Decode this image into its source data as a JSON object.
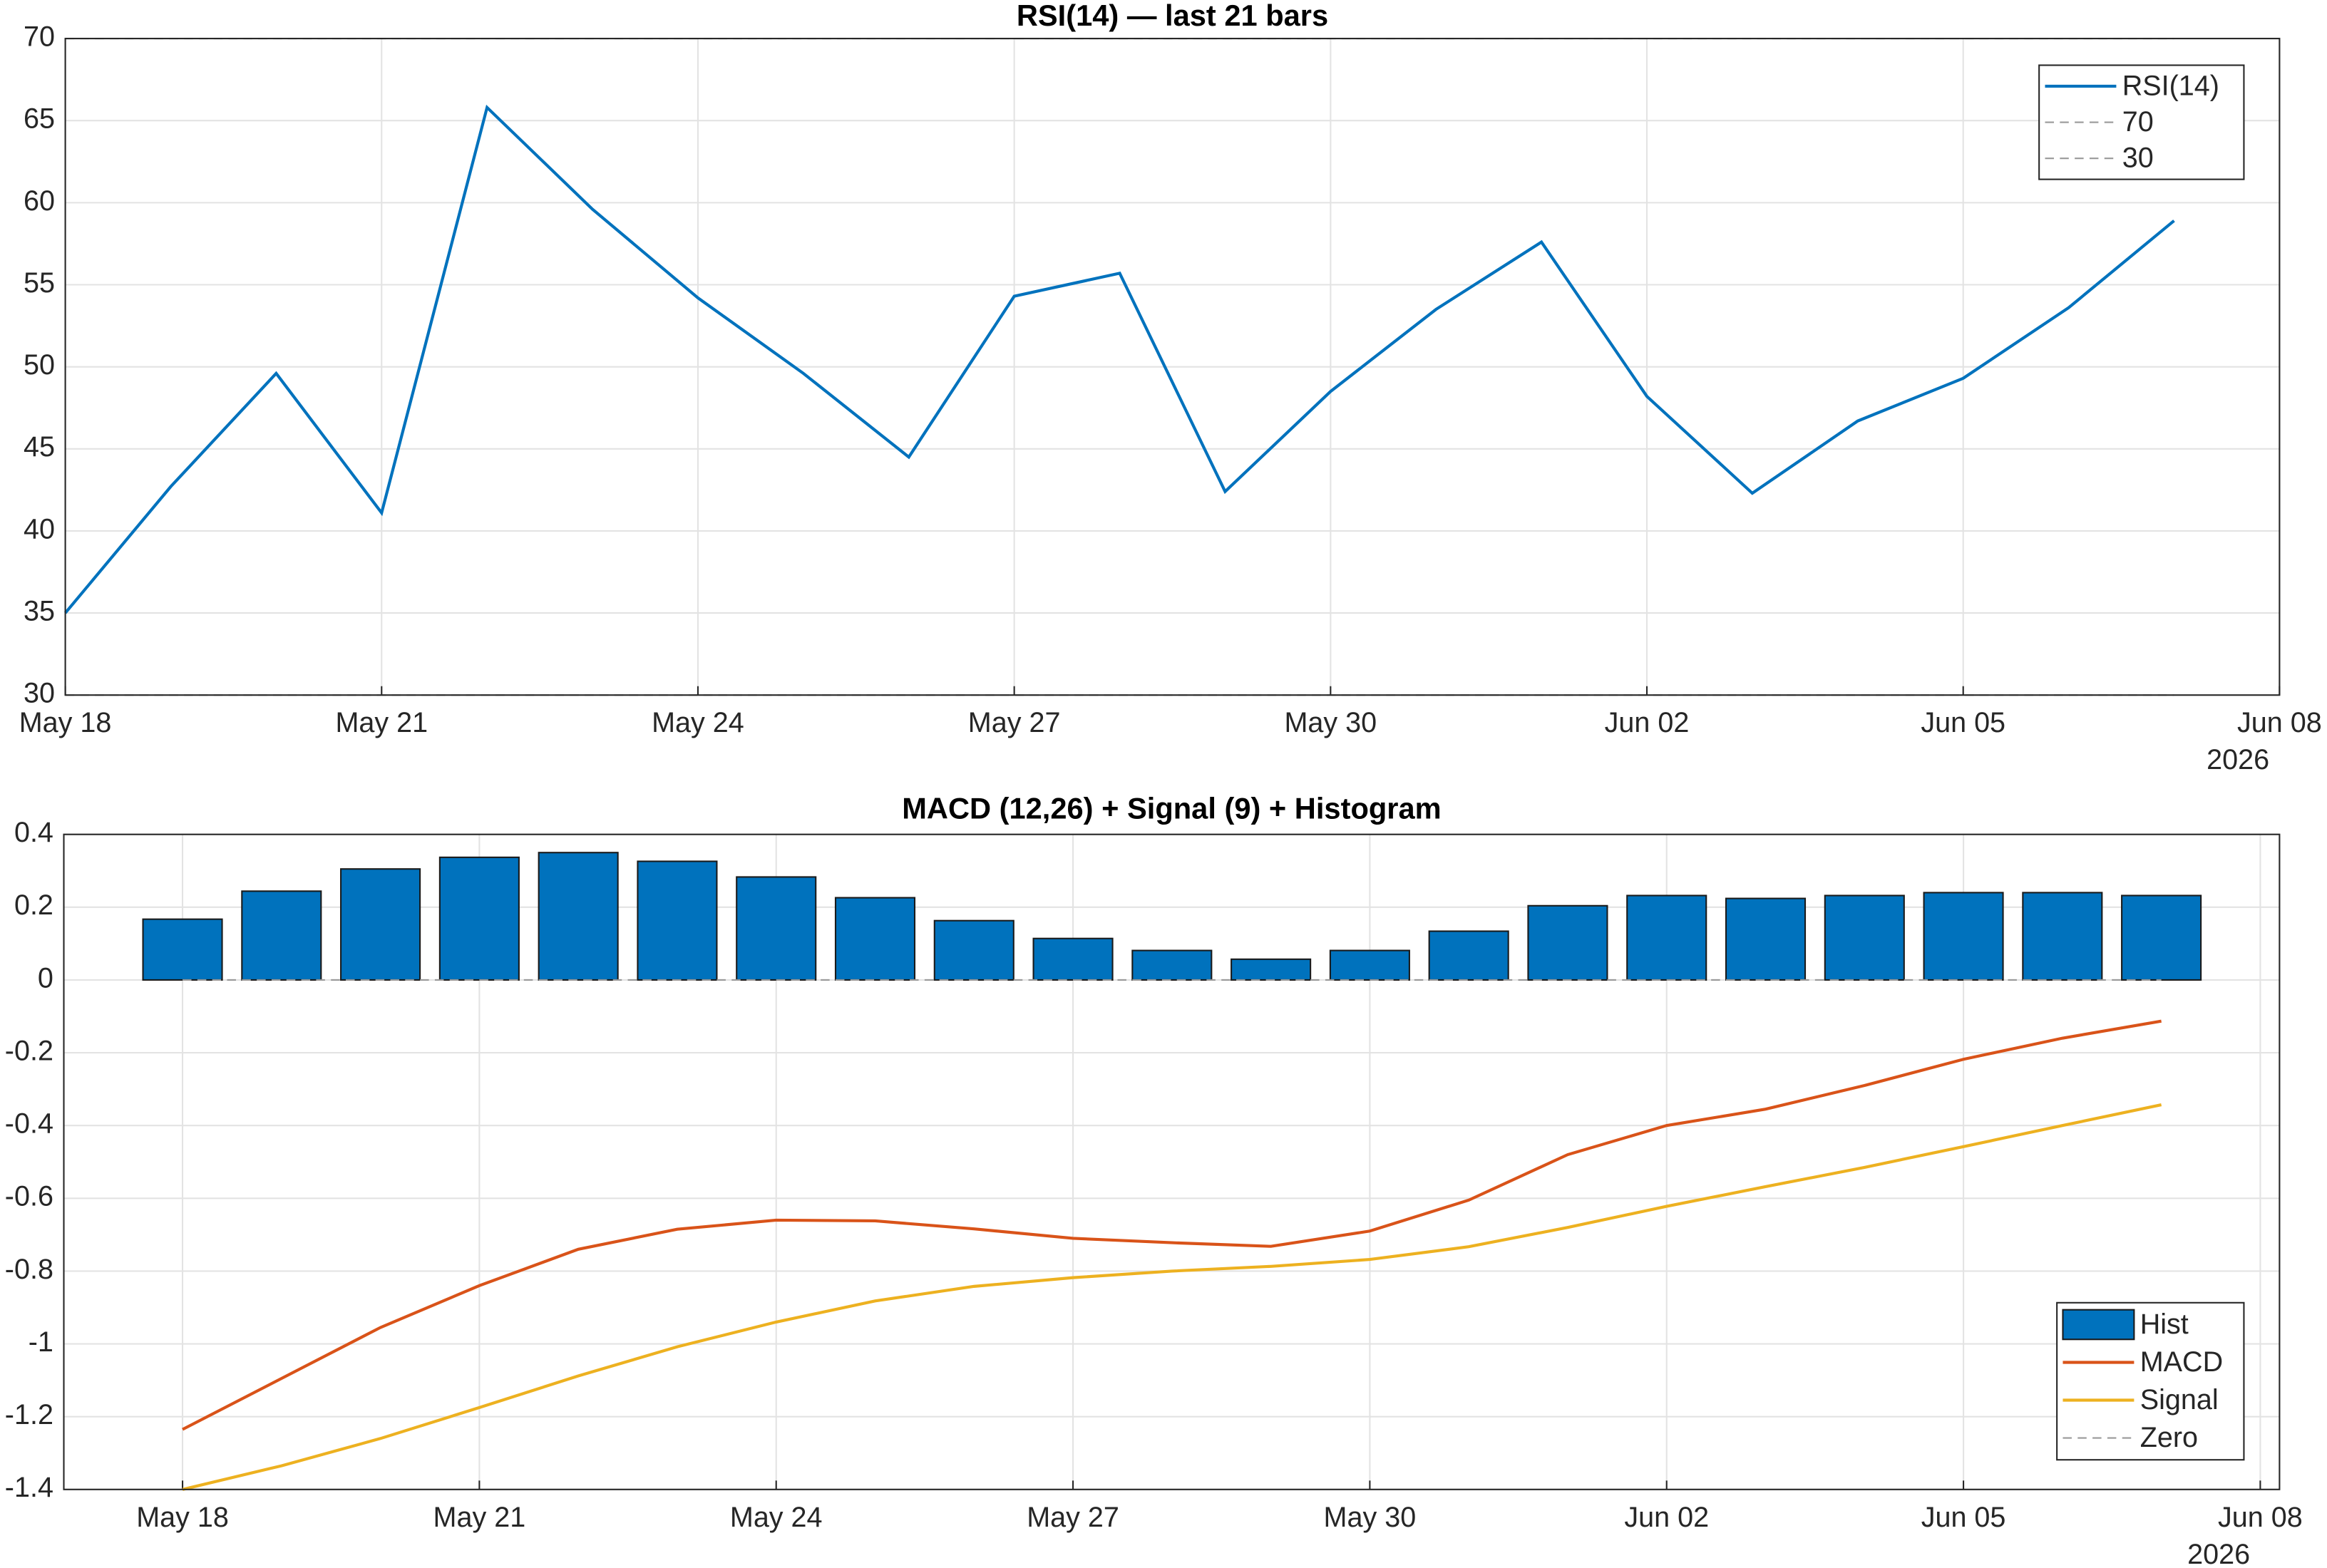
{
  "chart_data": [
    {
      "type": "line",
      "title": "RSI(14) — last 21 bars",
      "x": [
        "2026-05-18",
        "2026-05-19",
        "2026-05-20",
        "2026-05-21",
        "2026-05-22",
        "2026-05-23",
        "2026-05-24",
        "2026-05-25",
        "2026-05-26",
        "2026-05-27",
        "2026-05-28",
        "2026-05-29",
        "2026-05-30",
        "2026-05-31",
        "2026-06-01",
        "2026-06-02",
        "2026-06-03",
        "2026-06-04",
        "2026-06-05",
        "2026-06-06",
        "2026-06-07"
      ],
      "series": [
        {
          "name": "RSI(14)",
          "type": "line",
          "color": "#0072bd",
          "linestyle": "solid",
          "values": [
            35.0,
            42.7,
            49.6,
            41.1,
            65.8,
            59.6,
            54.2,
            49.6,
            44.5,
            54.3,
            55.7,
            42.4,
            48.5,
            53.5,
            57.6,
            48.2,
            42.3,
            46.7,
            49.3,
            53.6,
            58.9
          ]
        },
        {
          "name": "70",
          "type": "line",
          "color": "#999999",
          "linestyle": "dashed",
          "values": [
            70,
            70,
            70,
            70,
            70,
            70,
            70,
            70,
            70,
            70,
            70,
            70,
            70,
            70,
            70,
            70,
            70,
            70,
            70,
            70,
            70
          ]
        },
        {
          "name": "30",
          "type": "line",
          "color": "#999999",
          "linestyle": "dashed",
          "values": [
            30,
            30,
            30,
            30,
            30,
            30,
            30,
            30,
            30,
            30,
            30,
            30,
            30,
            30,
            30,
            30,
            30,
            30,
            30,
            30,
            30
          ]
        }
      ],
      "xlim": [
        "2026-05-18",
        "2026-06-08"
      ],
      "xticks": [
        {
          "value": "2026-05-18",
          "label": "May 18"
        },
        {
          "value": "2026-05-21",
          "label": "May 21"
        },
        {
          "value": "2026-05-24",
          "label": "May 24"
        },
        {
          "value": "2026-05-27",
          "label": "May 27"
        },
        {
          "value": "2026-05-30",
          "label": "May 30"
        },
        {
          "value": "2026-06-02",
          "label": "Jun 02"
        },
        {
          "value": "2026-06-05",
          "label": "Jun 05"
        },
        {
          "value": "2026-06-08",
          "label": "Jun 08"
        }
      ],
      "x_year_label": "2026",
      "ylim": [
        30,
        70
      ],
      "yticks": [
        30,
        35,
        40,
        45,
        50,
        55,
        60,
        65,
        70
      ],
      "grid": true,
      "legend": "northeast"
    },
    {
      "type": "combo",
      "title": "MACD (12,26) + Signal (9) + Histogram",
      "x": [
        "2026-05-18",
        "2026-05-19",
        "2026-05-20",
        "2026-05-21",
        "2026-05-22",
        "2026-05-23",
        "2026-05-24",
        "2026-05-25",
        "2026-05-26",
        "2026-05-27",
        "2026-05-28",
        "2026-05-29",
        "2026-05-30",
        "2026-05-31",
        "2026-06-01",
        "2026-06-02",
        "2026-06-03",
        "2026-06-04",
        "2026-06-05",
        "2026-06-06",
        "2026-06-07"
      ],
      "series": [
        {
          "name": "Hist",
          "type": "bar",
          "color": "#0072bd",
          "values": [
            0.167,
            0.244,
            0.305,
            0.337,
            0.35,
            0.326,
            0.283,
            0.226,
            0.163,
            0.114,
            0.081,
            0.057,
            0.081,
            0.134,
            0.204,
            0.232,
            0.224,
            0.232,
            0.24,
            0.24,
            0.232
          ]
        },
        {
          "name": "MACD",
          "type": "line",
          "color": "#d95319",
          "linestyle": "solid",
          "values": [
            -1.235,
            -1.095,
            -0.955,
            -0.84,
            -0.74,
            -0.685,
            -0.66,
            -0.662,
            -0.684,
            -0.71,
            -0.722,
            -0.732,
            -0.69,
            -0.605,
            -0.48,
            -0.4,
            -0.355,
            -0.29,
            -0.218,
            -0.16,
            -0.113
          ]
        },
        {
          "name": "Signal",
          "type": "line",
          "color": "#edb120",
          "linestyle": "solid",
          "values": [
            -1.4,
            -1.335,
            -1.26,
            -1.175,
            -1.088,
            -1.008,
            -0.94,
            -0.882,
            -0.842,
            -0.818,
            -0.8,
            -0.787,
            -0.768,
            -0.733,
            -0.68,
            -0.622,
            -0.568,
            -0.515,
            -0.458,
            -0.4,
            -0.343
          ]
        },
        {
          "name": "Zero",
          "type": "line",
          "color": "#999999",
          "linestyle": "dashed",
          "values": [
            0,
            0,
            0,
            0,
            0,
            0,
            0,
            0,
            0,
            0,
            0,
            0,
            0,
            0,
            0,
            0,
            0,
            0,
            0,
            0,
            0
          ]
        }
      ],
      "xlim": [
        "2026-05-16T19:12",
        "2026-06-08T04:40"
      ],
      "xticks": [
        {
          "value": "2026-05-18",
          "label": "May 18"
        },
        {
          "value": "2026-05-21",
          "label": "May 21"
        },
        {
          "value": "2026-05-24",
          "label": "May 24"
        },
        {
          "value": "2026-05-27",
          "label": "May 27"
        },
        {
          "value": "2026-05-30",
          "label": "May 30"
        },
        {
          "value": "2026-06-02",
          "label": "Jun 02"
        },
        {
          "value": "2026-06-05",
          "label": "Jun 05"
        },
        {
          "value": "2026-06-08",
          "label": "Jun 08"
        }
      ],
      "x_year_label": "2026",
      "ylim": [
        -1.4,
        0.4
      ],
      "yticks": [
        -1.4,
        -1.2,
        -1,
        -0.8,
        -0.6,
        -0.4,
        -0.2,
        0,
        0.2,
        0.4
      ],
      "grid": true,
      "legend": "southeast"
    }
  ]
}
